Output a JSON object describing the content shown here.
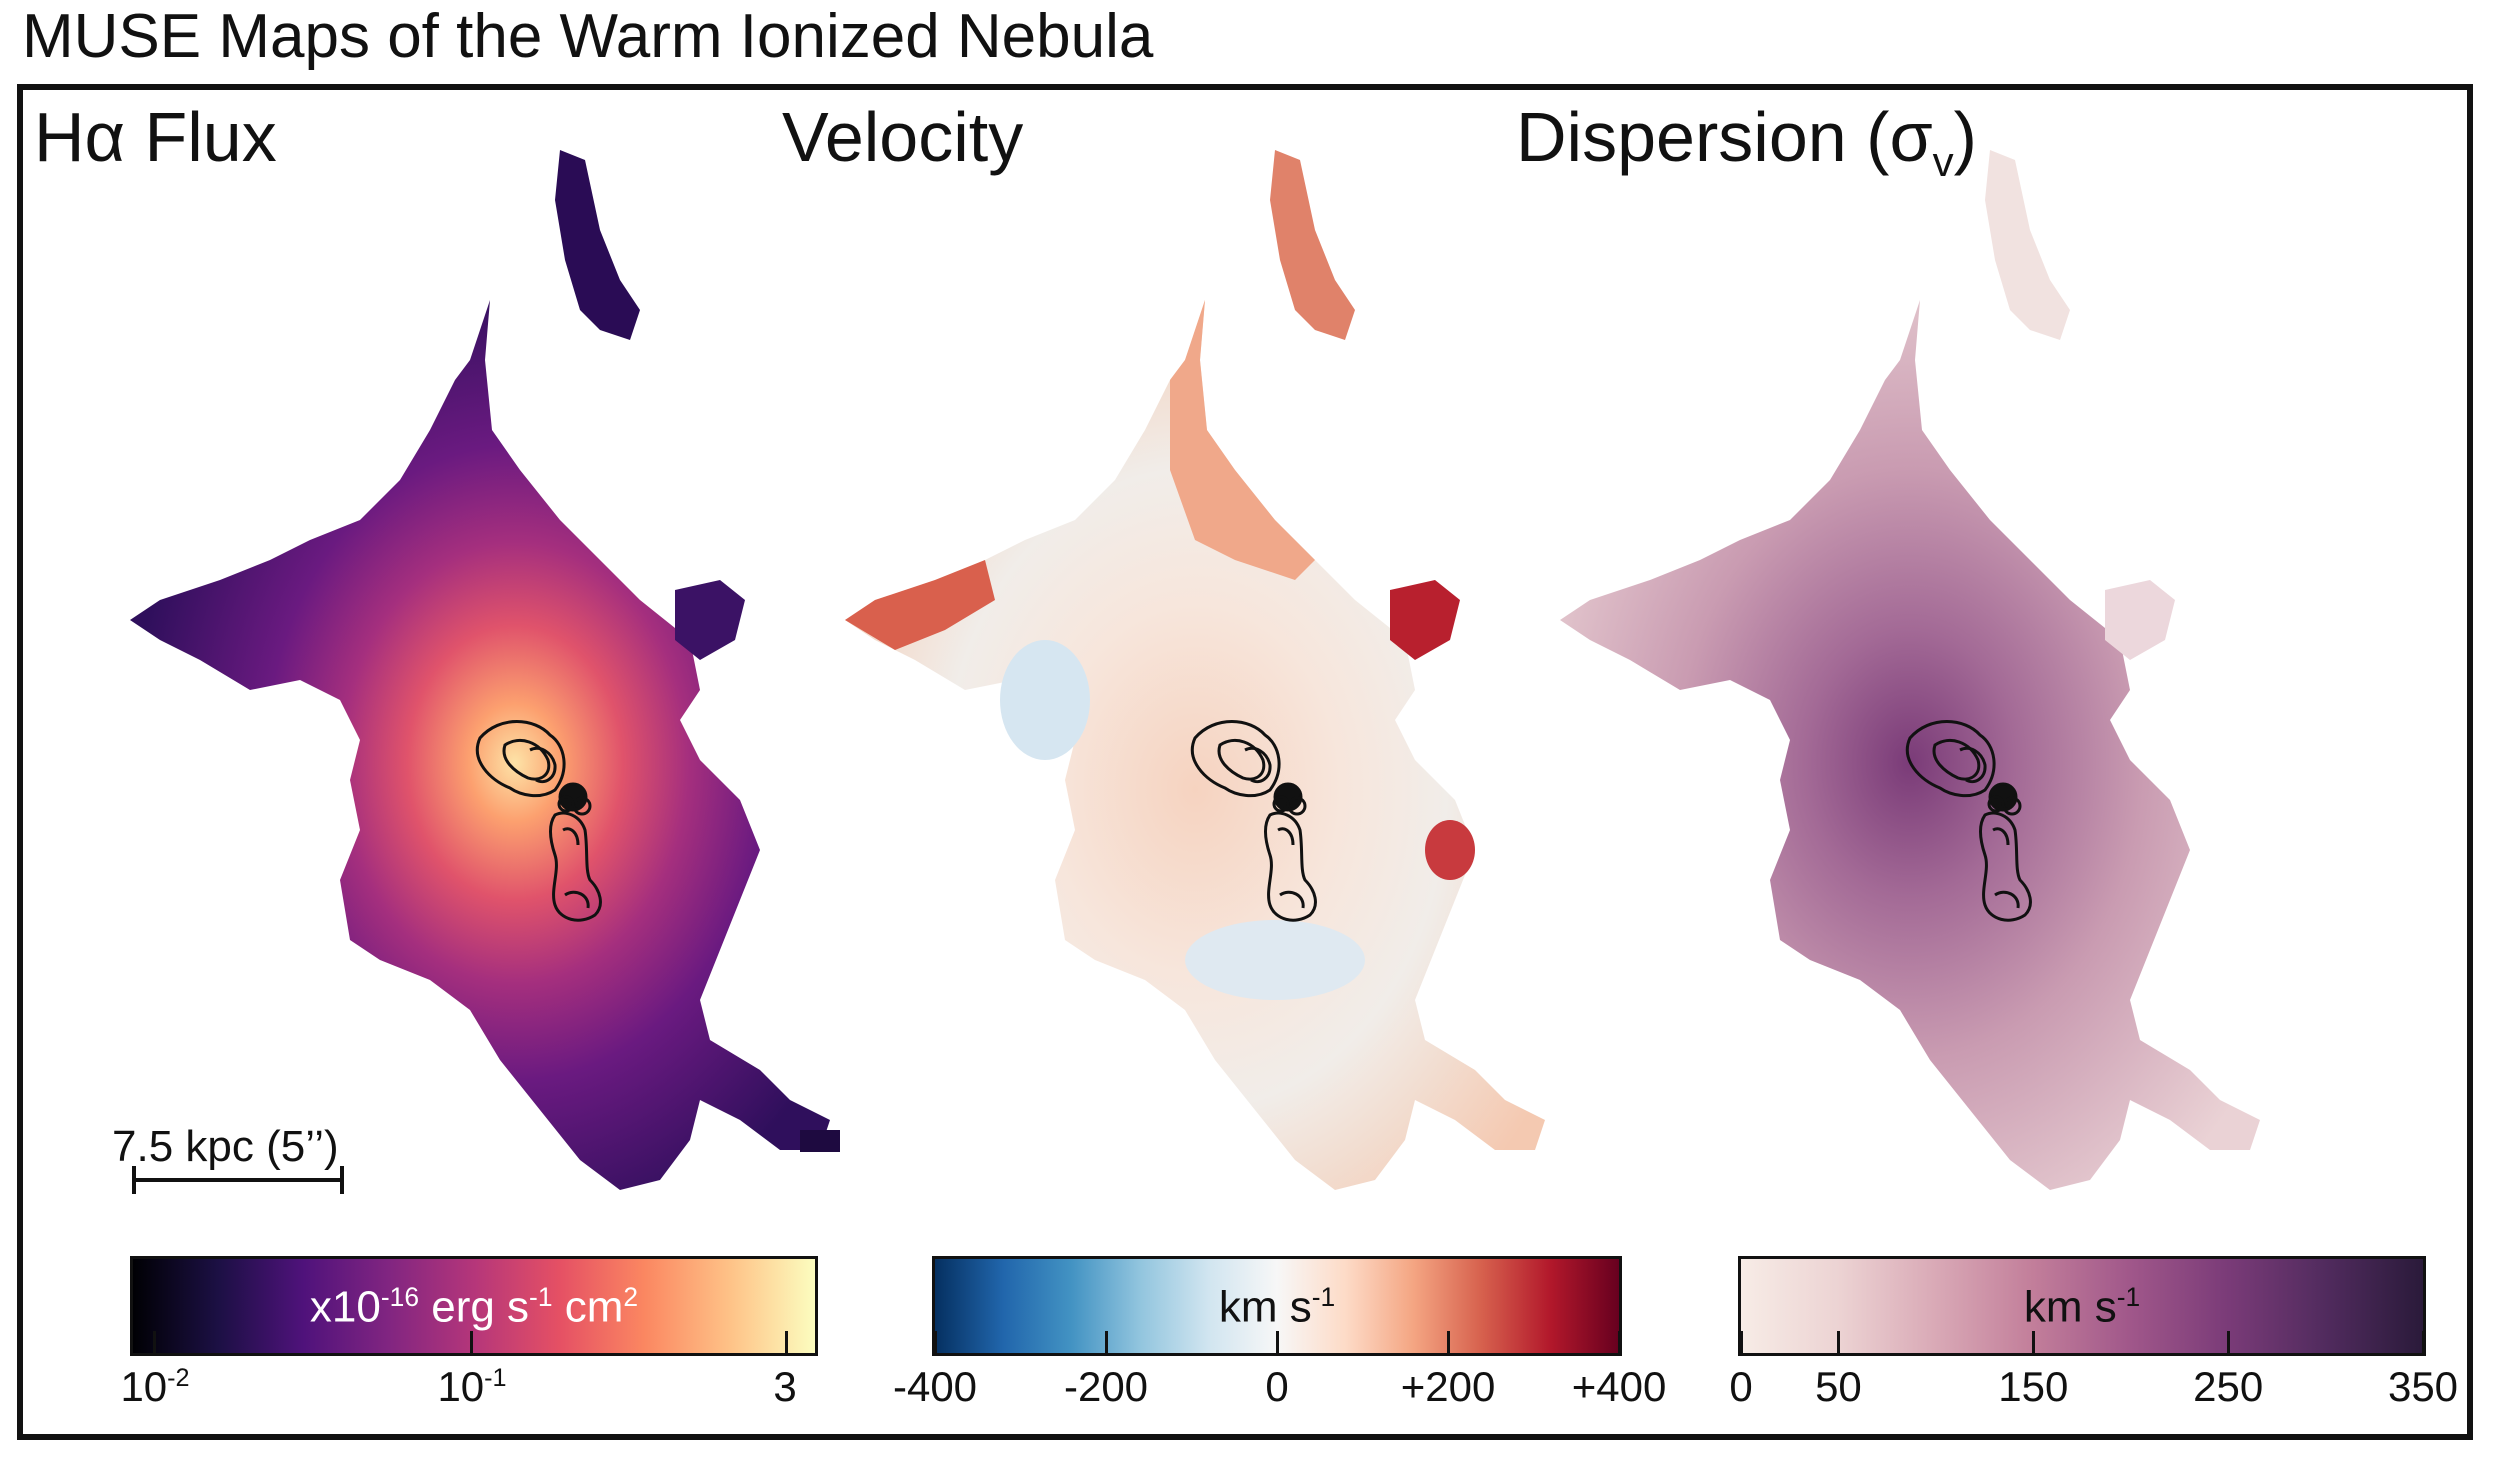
{
  "title": "MUSE Maps of the Warm Ionized Nebula",
  "panels": [
    {
      "title_main": "Hα Flux",
      "title_sub": ""
    },
    {
      "title_main": "Velocity",
      "title_sub": ""
    },
    {
      "title_main": "Dispersion (σ",
      "title_sub": "v",
      "title_close": ")"
    }
  ],
  "scale_bar": {
    "label": "7.5 kpc (5’’)"
  },
  "colorbars": [
    {
      "name": "flux",
      "colormap": "magma",
      "label_prefix": "x10",
      "label_exp": "-16",
      "label_mid": " erg s",
      "label_exp2": "-1",
      "label_mid2": " cm",
      "label_exp3": "2",
      "ticks": [
        {
          "base": "10",
          "exp": "-2"
        },
        {
          "base": "10",
          "exp": "-1"
        },
        {
          "base": "3",
          "exp": ""
        }
      ],
      "colors": [
        "#000004",
        "#1c1044",
        "#4f127b",
        "#812581",
        "#b5367a",
        "#e55064",
        "#fb8761",
        "#fec287",
        "#fcfdbf"
      ]
    },
    {
      "name": "velocity",
      "colormap": "RdBu_r",
      "label_main": "km s",
      "label_exp": "-1",
      "ticks": [
        "-400",
        "-200",
        "0",
        "+200",
        "+400"
      ],
      "range": [
        -400,
        400
      ],
      "colors": [
        "#053061",
        "#2166ac",
        "#4393c3",
        "#92c5de",
        "#d1e5f0",
        "#f7f7f7",
        "#fddbc7",
        "#f4a582",
        "#d6604d",
        "#b2182b",
        "#67001f"
      ]
    },
    {
      "name": "dispersion",
      "colormap": "PuRd-like",
      "label_main": "km s",
      "label_exp": "-1",
      "ticks": [
        "0",
        "50",
        "150",
        "250",
        "350"
      ],
      "range": [
        0,
        350
      ],
      "colors": [
        "#f7ece6",
        "#ecd3d3",
        "#d9a9b6",
        "#c27e9a",
        "#a0578a",
        "#7a3b78",
        "#512b5e",
        "#2a1a3a"
      ]
    }
  ]
}
